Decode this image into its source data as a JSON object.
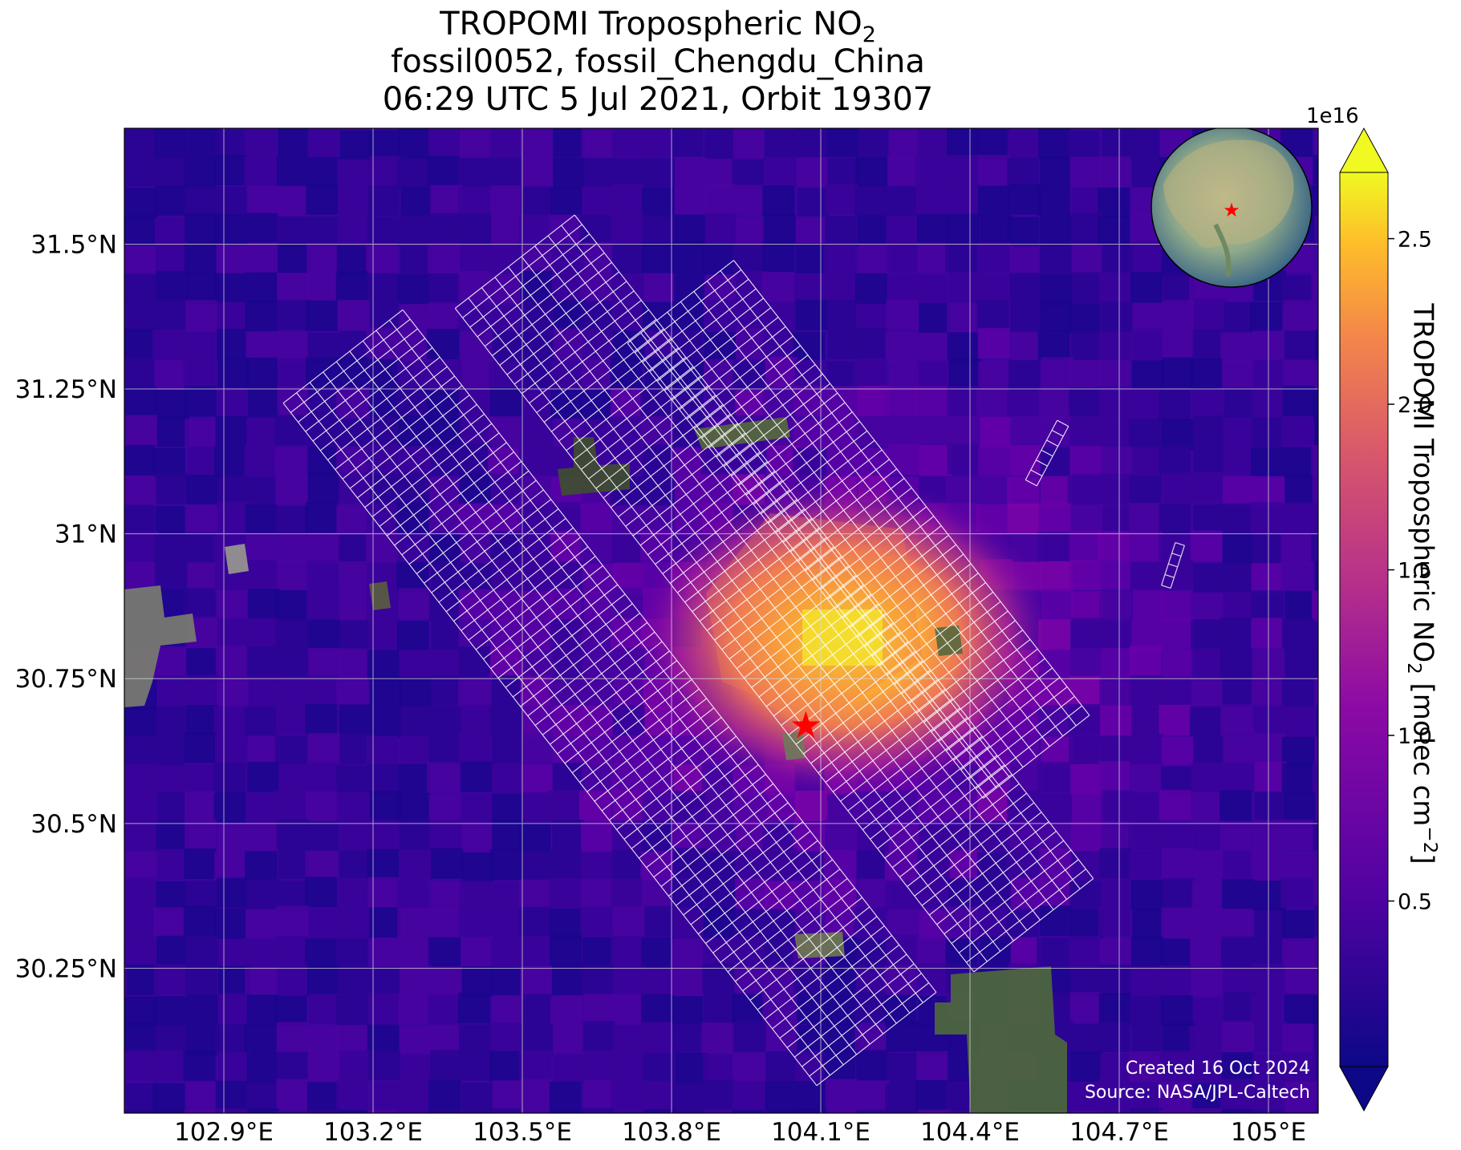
{
  "title": {
    "line1_main": "TROPOMI Tropospheric NO",
    "line1_sub": "2",
    "line2": "fossil0052, fossil_Chengdu_China",
    "line3": "06:29 UTC 5 Jul 2021, Orbit 19307"
  },
  "credit": {
    "line1": "Created 16 Oct 2024",
    "line2": "Source: NASA/JPL-Caltech"
  },
  "colorbar": {
    "exponent": "1e16",
    "label_main": "TROPOMI Tropospheric NO",
    "label_sub": "2",
    "label_unit": " [molec cm",
    "label_sup": "−2",
    "label_end": "]",
    "ticks": [
      {
        "value": 0.5,
        "label": "0.5"
      },
      {
        "value": 1.0,
        "label": "1.0"
      },
      {
        "value": 1.5,
        "label": "1.5"
      },
      {
        "value": 2.0,
        "label": "2.0"
      },
      {
        "value": 2.5,
        "label": "2.5"
      }
    ],
    "range": [
      0,
      2.7
    ],
    "colormap": "plasma",
    "extend": "both"
  },
  "map": {
    "lon_range": [
      102.7,
      105.1
    ],
    "lat_range": [
      30.0,
      31.7
    ],
    "lon_ticks": [
      {
        "value": 102.9,
        "label": "102.9°E"
      },
      {
        "value": 103.2,
        "label": "103.2°E"
      },
      {
        "value": 103.5,
        "label": "103.5°E"
      },
      {
        "value": 103.8,
        "label": "103.8°E"
      },
      {
        "value": 104.1,
        "label": "104.1°E"
      },
      {
        "value": 104.4,
        "label": "104.4°E"
      },
      {
        "value": 104.7,
        "label": "104.7°E"
      },
      {
        "value": 105.0,
        "label": "105°E"
      }
    ],
    "lat_ticks": [
      {
        "value": 31.5,
        "label": "31.5°N"
      },
      {
        "value": 31.25,
        "label": "31.25°N"
      },
      {
        "value": 31.0,
        "label": "31°N"
      },
      {
        "value": 30.75,
        "label": "30.75°N"
      },
      {
        "value": 30.5,
        "label": "30.5°N"
      },
      {
        "value": 30.25,
        "label": "30.25°N"
      }
    ],
    "target": {
      "name": "fossil_Chengdu_China",
      "lon": 104.07,
      "lat": 30.67,
      "marker": "star",
      "color": "#ff0000"
    },
    "no2_hotspot": {
      "lon": 104.15,
      "lat": 30.82,
      "peak": 2.6
    },
    "background_level": 0.45,
    "inset_globe": {
      "center_label": "star-marker",
      "region": "Asia"
    }
  }
}
